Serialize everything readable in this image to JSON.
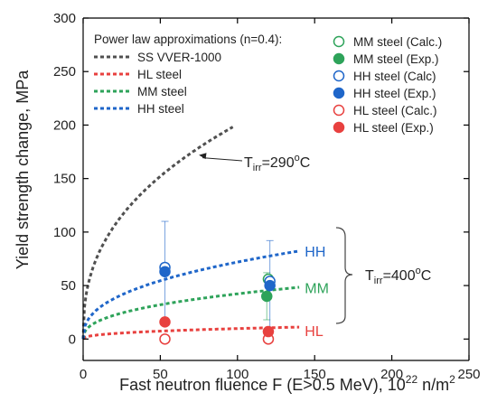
{
  "chart_data": {
    "type": "scatter",
    "xlabel": "Fast neutron fluence F (E>0.5 MeV), 10",
    "xlabel_sup": "22",
    "xlabel_suffix": " n/m",
    "xlabel_sup2": "2",
    "ylabel": "Yield strength change, MPa",
    "xlim": [
      0,
      250
    ],
    "ylim": [
      -20,
      300
    ],
    "xticks": [
      0,
      50,
      100,
      150,
      200,
      250
    ],
    "yticks": [
      0,
      50,
      100,
      150,
      200,
      250,
      300
    ],
    "grid": false,
    "legend_left_title": "Power law approximations (n=0.4):",
    "lines": [
      {
        "name": "SS VVER-1000",
        "color": "#505050",
        "coef": 31.8,
        "exp": 0.4,
        "xmax": 97
      },
      {
        "name": "HL steel",
        "color": "#e8413f",
        "coef": 1.55,
        "exp": 0.4,
        "xmax": 140
      },
      {
        "name": "MM steel",
        "color": "#2ea35a",
        "coef": 6.7,
        "exp": 0.4,
        "xmax": 140
      },
      {
        "name": "HH steel",
        "color": "#1f66c9",
        "coef": 11.4,
        "exp": 0.4,
        "xmax": 140
      }
    ],
    "points": [
      {
        "name": "MM steel (Calc.)",
        "color": "#2ea35a",
        "filled": false,
        "data": [
          [
            120,
            56
          ]
        ]
      },
      {
        "name": "MM steel (Exp.)",
        "color": "#2ea35a",
        "filled": true,
        "data": [
          [
            119,
            40
          ]
        ],
        "err": [
          [
            119,
            40,
            22
          ]
        ]
      },
      {
        "name": "HH steel (Calc)",
        "color": "#1f66c9",
        "filled": false,
        "data": [
          [
            53,
            67
          ],
          [
            121,
            54
          ]
        ]
      },
      {
        "name": "HH steel (Exp.)",
        "color": "#1f66c9",
        "filled": true,
        "data": [
          [
            53,
            63
          ],
          [
            121,
            50
          ]
        ],
        "err": [
          [
            53,
            63,
            47
          ],
          [
            121,
            50,
            42
          ]
        ]
      },
      {
        "name": "HL steel (Calc.)",
        "color": "#e8413f",
        "filled": false,
        "data": [
          [
            53,
            0
          ],
          [
            120,
            0
          ]
        ]
      },
      {
        "name": "HL steel (Exp.)",
        "color": "#e8413f",
        "filled": true,
        "data": [
          [
            53,
            16
          ],
          [
            120,
            7
          ]
        ]
      }
    ],
    "series_labels": [
      {
        "text": "HH",
        "color": "#1f66c9",
        "x": 160,
        "y": 82
      },
      {
        "text": "MM",
        "color": "#2ea35a",
        "x": 160,
        "y": 48
      },
      {
        "text": "HL",
        "color": "#e8413f",
        "x": 160,
        "y": 8
      }
    ],
    "annotations": {
      "t290": {
        "prefix": "T",
        "sub": "irr",
        "text": "=290",
        "sup": "o",
        "suffix": "C",
        "arrow_to": [
          75,
          172
        ]
      },
      "t400": {
        "prefix": "T",
        "sub": "irr",
        "text": "=400",
        "sup": "o",
        "suffix": "C"
      }
    }
  }
}
